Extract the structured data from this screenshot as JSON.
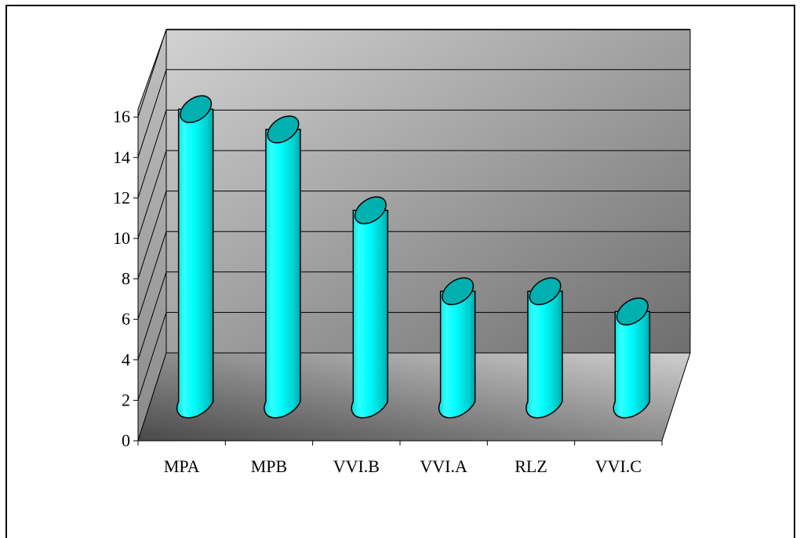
{
  "chart_data": {
    "type": "bar",
    "style": "3d-cylinder",
    "categories": [
      "MPA",
      "MPB",
      "VVI.B",
      "VVI.A",
      "RLZ",
      "VVI.C"
    ],
    "values": [
      16,
      15,
      11,
      7,
      7,
      6
    ],
    "ylim": [
      0,
      16
    ],
    "yticks": [
      "0",
      "2",
      "4",
      "6",
      "8",
      "10",
      "12",
      "14",
      "16"
    ],
    "title": "",
    "xlabel": "",
    "ylabel": "",
    "grid": true,
    "legend": "none",
    "colors": {
      "cylinder_body": "#00ffff",
      "cylinder_top": "#00b0b0",
      "back_wall_light": "#cfcfcf",
      "back_wall_dark": "#707070",
      "floor_light": "#c8c8c8",
      "floor_dark": "#505050"
    }
  }
}
